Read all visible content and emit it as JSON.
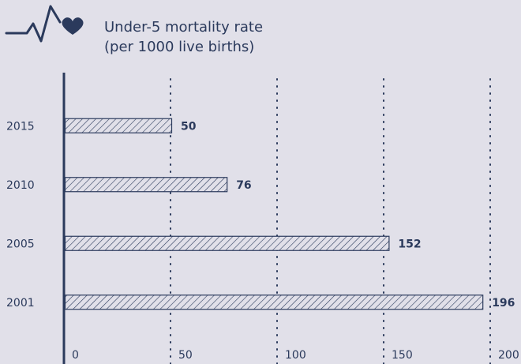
{
  "chart_data": {
    "type": "bar",
    "orientation": "horizontal",
    "title": "Under-5 mortality rate",
    "subtitle": "(per 1000 live births)",
    "categories": [
      "2015",
      "2010",
      "2005",
      "2001"
    ],
    "values": [
      50,
      76,
      152,
      196
    ],
    "color": "#2b3a5c",
    "xlim": [
      0,
      200
    ],
    "xticks": [
      0,
      50,
      100,
      150,
      200
    ],
    "grid": true
  }
}
